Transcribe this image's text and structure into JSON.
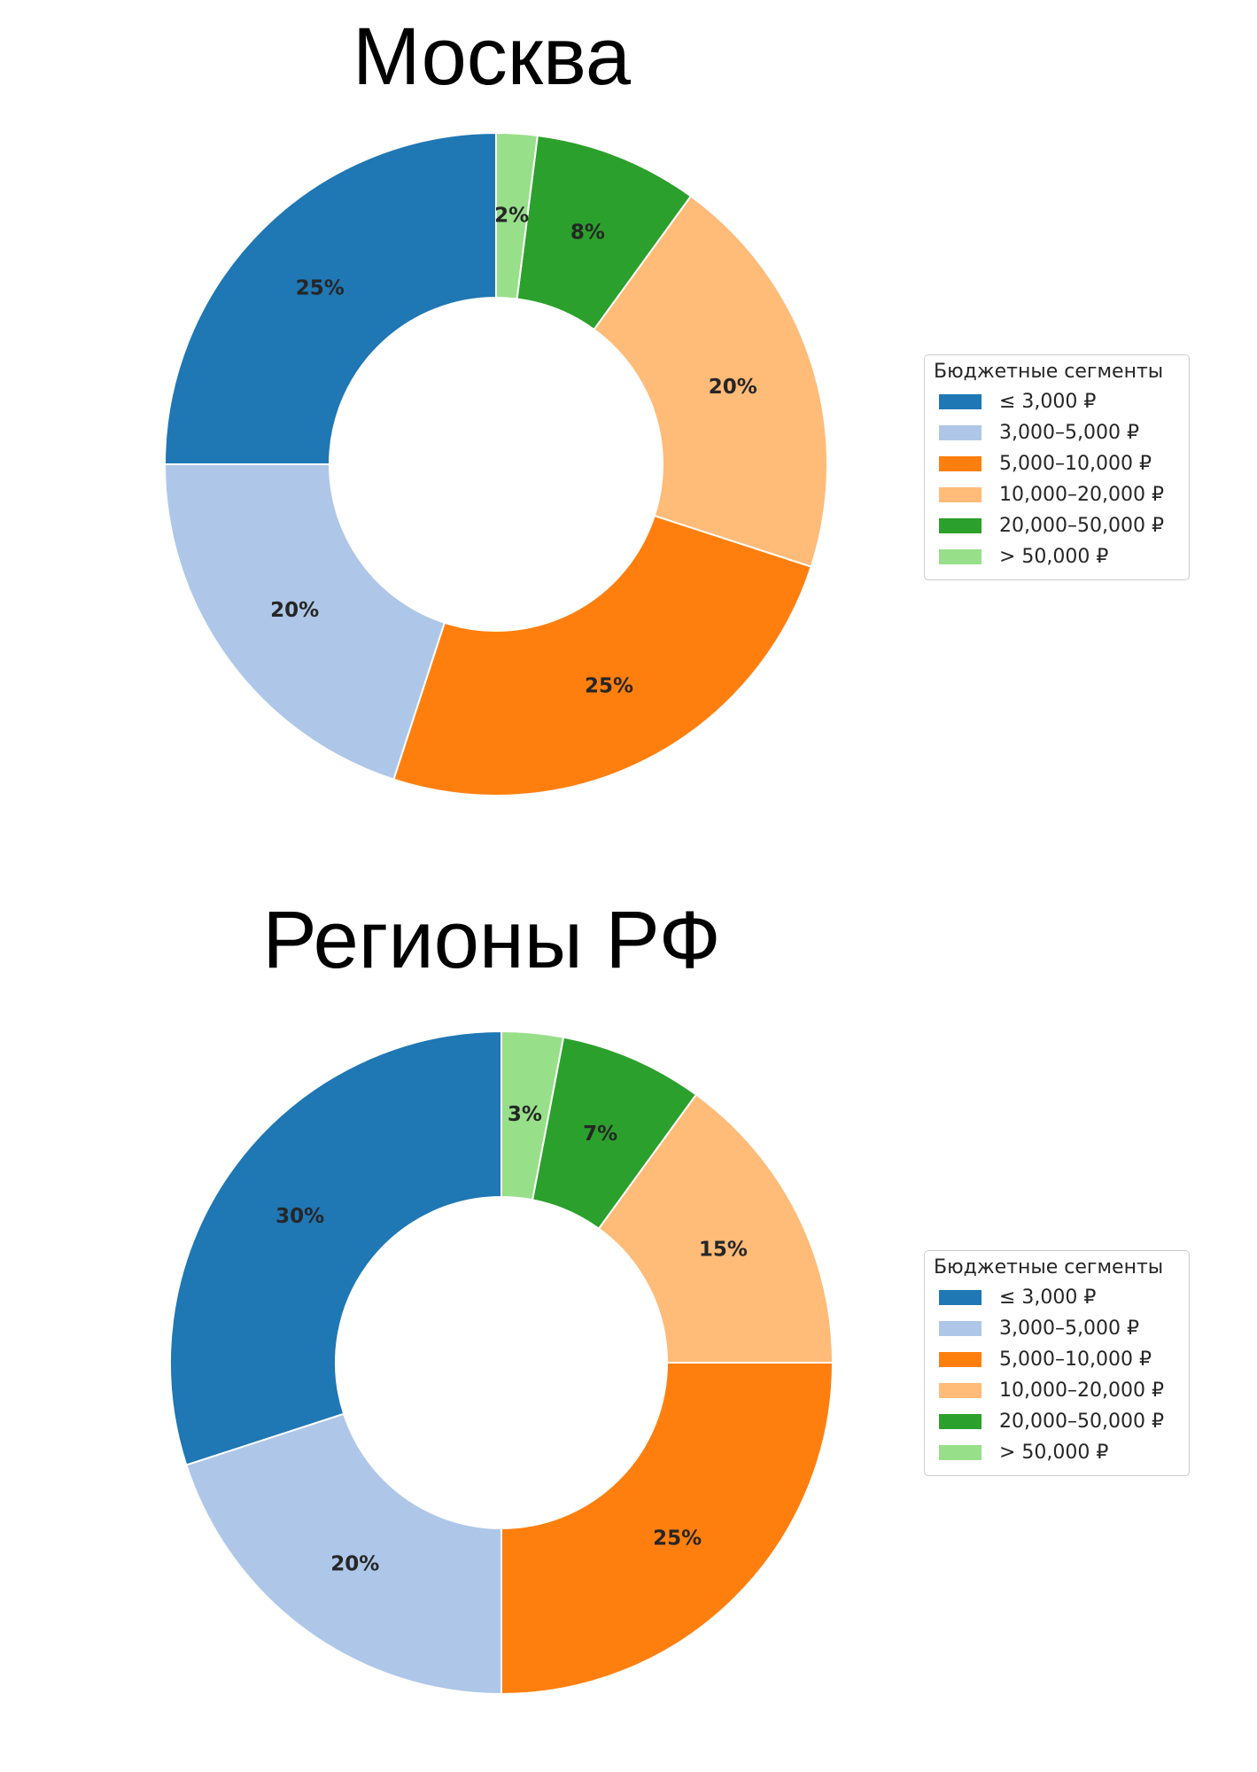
{
  "colors": [
    "#1f77b4",
    "#aec7e8",
    "#ff7f0e",
    "#ffbb78",
    "#2ca02c",
    "#98df8a"
  ],
  "chart_data": [
    {
      "type": "pie",
      "title": "Москва",
      "categories": [
        "≤ 3,000 ₽",
        "3,000–5,000 ₽",
        "5,000–10,000 ₽",
        "10,000–20,000 ₽",
        "20,000–50,000 ₽",
        "> 50,000 ₽"
      ],
      "values": [
        25,
        20,
        25,
        20,
        8,
        2
      ],
      "labels": [
        "25%",
        "20%",
        "25%",
        "20%",
        "8%",
        "2%"
      ],
      "legend_title": "Бюджетные сегменты",
      "legend_placement": "right",
      "donut": true,
      "start_angle": "top",
      "direction": "counterclockwise"
    },
    {
      "type": "pie",
      "title": "Регионы РФ",
      "categories": [
        "≤ 3,000 ₽",
        "3,000–5,000 ₽",
        "5,000–10,000 ₽",
        "10,000–20,000 ₽",
        "20,000–50,000 ₽",
        "> 50,000 ₽"
      ],
      "values": [
        30,
        20,
        25,
        15,
        7,
        3
      ],
      "labels": [
        "30%",
        "20%",
        "25%",
        "15%",
        "7%",
        "3%"
      ],
      "legend_title": "Бюджетные сегменты",
      "legend_placement": "right",
      "donut": true,
      "start_angle": "top",
      "direction": "counterclockwise"
    }
  ]
}
